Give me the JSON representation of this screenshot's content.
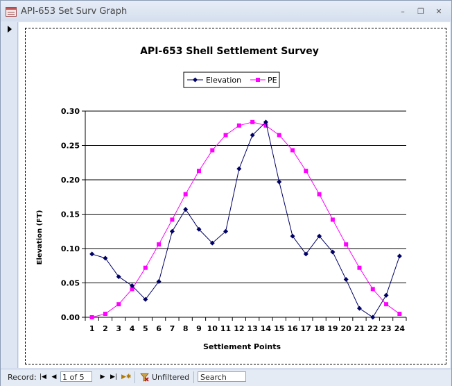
{
  "window": {
    "title": "API-653 Set Surv Graph"
  },
  "chart_data": {
    "type": "line",
    "title": "API-653 Shell Settlement Survey",
    "xlabel": "Settlement Points",
    "ylabel": "Elevation (FT)",
    "categories": [
      "1",
      "2",
      "3",
      "4",
      "5",
      "6",
      "7",
      "8",
      "9",
      "10",
      "11",
      "12",
      "13",
      "14",
      "15",
      "16",
      "17",
      "18",
      "19",
      "20",
      "21",
      "22",
      "23",
      "24"
    ],
    "ylim": [
      0,
      0.3
    ],
    "yticks": [
      "0.00",
      "0.05",
      "0.10",
      "0.15",
      "0.20",
      "0.25",
      "0.30"
    ],
    "grid": true,
    "legend_position": "top-center",
    "series": [
      {
        "name": "Elevation",
        "color": "#000066",
        "marker": "diamond",
        "values": [
          0.092,
          0.086,
          0.059,
          0.046,
          0.026,
          0.052,
          0.125,
          0.157,
          0.128,
          0.108,
          0.125,
          0.216,
          0.265,
          0.284,
          0.197,
          0.118,
          0.092,
          0.118,
          0.095,
          0.055,
          0.013,
          0.0,
          0.032,
          0.089
        ]
      },
      {
        "name": "PE",
        "color": "#ff00ff",
        "marker": "square",
        "values": [
          0.0,
          0.005,
          0.019,
          0.041,
          0.072,
          0.106,
          0.142,
          0.179,
          0.213,
          0.243,
          0.265,
          0.279,
          0.284,
          0.279,
          0.265,
          0.243,
          0.213,
          0.179,
          0.142,
          0.106,
          0.072,
          0.041,
          0.019,
          0.005
        ]
      }
    ]
  },
  "statusbar": {
    "record_label": "Record:",
    "first_icon": "first-record-icon",
    "prev_icon": "previous-record-icon",
    "record_value": "1 of 5",
    "next_icon": "next-record-icon",
    "last_icon": "last-record-icon",
    "new_icon": "new-record-icon",
    "filter_label": "Unfiltered",
    "search_text": "Search"
  }
}
